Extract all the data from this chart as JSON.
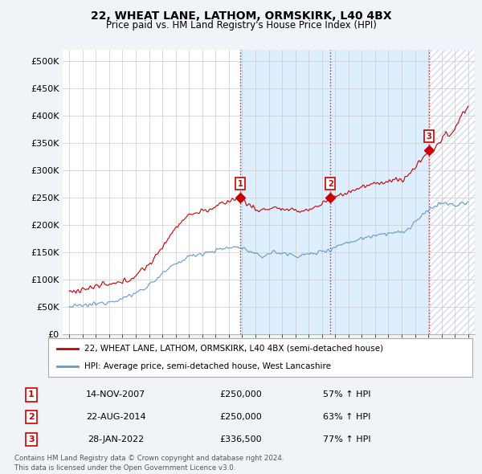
{
  "title": "22, WHEAT LANE, LATHOM, ORMSKIRK, L40 4BX",
  "subtitle": "Price paid vs. HM Land Registry's House Price Index (HPI)",
  "hpi_label": "HPI: Average price, semi-detached house, West Lancashire",
  "property_label": "22, WHEAT LANE, LATHOM, ORMSKIRK, L40 4BX (semi-detached house)",
  "transactions": [
    {
      "num": 1,
      "date": "14-NOV-2007",
      "price": 250000,
      "pct": "57%",
      "dir": "↑"
    },
    {
      "num": 2,
      "date": "22-AUG-2014",
      "price": 250000,
      "pct": "63%",
      "dir": "↑"
    },
    {
      "num": 3,
      "date": "28-JAN-2022",
      "price": 336500,
      "pct": "77%",
      "dir": "↑"
    }
  ],
  "transaction_dates_decimal": [
    2007.87,
    2014.64,
    2022.07
  ],
  "transaction_prices": [
    250000,
    250000,
    336500
  ],
  "vline_dates": [
    2007.87,
    2014.64,
    2022.07
  ],
  "xlim": [
    1994.5,
    2025.5
  ],
  "ylim": [
    0,
    520000
  ],
  "yticks": [
    0,
    50000,
    100000,
    150000,
    200000,
    250000,
    300000,
    350000,
    400000,
    450000,
    500000
  ],
  "ytick_labels": [
    "£0",
    "£50K",
    "£100K",
    "£150K",
    "£200K",
    "£250K",
    "£300K",
    "£350K",
    "£400K",
    "£450K",
    "£500K"
  ],
  "property_color": "#cc0000",
  "hpi_color": "#6699cc",
  "vline_color": "#cc0000",
  "background_color": "#f0f4f8",
  "plot_bg_color": "#ffffff",
  "shade_color": "#ddeeff",
  "footer": "Contains HM Land Registry data © Crown copyright and database right 2024.\nThis data is licensed under the Open Government Licence v3.0.",
  "grid_color": "#cccccc"
}
